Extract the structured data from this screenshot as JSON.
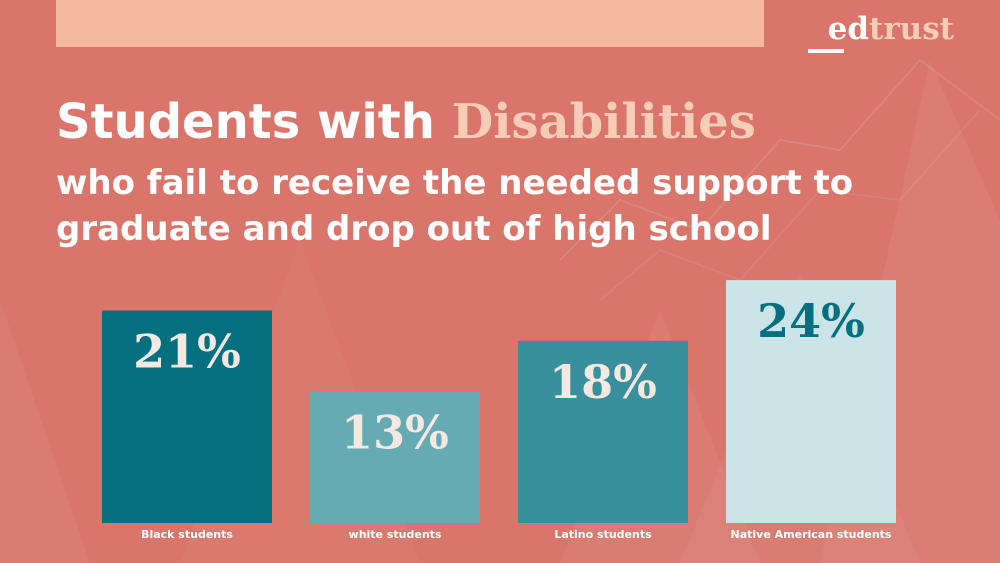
{
  "brand": {
    "logo_part1": "ed",
    "logo_part2": "trust"
  },
  "headline": {
    "line1_prefix": "Students with ",
    "line1_highlight": "Disabilities",
    "line2": "who fail to receive the needed support to graduate and drop out of high school"
  },
  "colors": {
    "background": "#d9756a",
    "top_band": "#f5b8a0",
    "highlight": "#f8cdb8"
  },
  "chart_data": {
    "type": "bar",
    "categories": [
      "Black students",
      "white students",
      "Latino students",
      "Native American students"
    ],
    "values": [
      21,
      13,
      18,
      24
    ],
    "value_labels": [
      "21%",
      "13%",
      "18%",
      "24%"
    ],
    "bar_colors": [
      "#036f7f",
      "#66aab4",
      "#37909b",
      "#cbe4e7"
    ],
    "label_colors": [
      "#f3e9e2",
      "#f3e9e2",
      "#f3e9e2",
      "#036f7f"
    ],
    "ylim": [
      0,
      25
    ],
    "grid": false,
    "legend": "none",
    "title": "",
    "xlabel": "",
    "ylabel": ""
  }
}
